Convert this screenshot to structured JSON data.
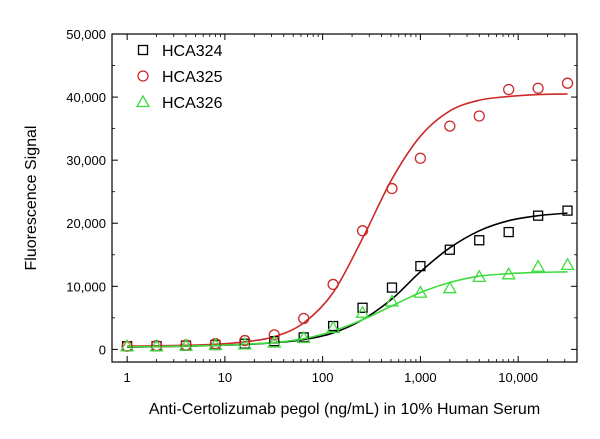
{
  "chart_data": {
    "type": "scatter",
    "xlabel": "Anti-Certolizumab pegol (ng/mL) in 10% Human Serum",
    "ylabel": "Fluorescence Signal",
    "x_scale": "log",
    "xlim": [
      0.7,
      40000
    ],
    "ylim": [
      -2000,
      50000
    ],
    "x_ticks": [
      {
        "value": 1,
        "label": "1"
      },
      {
        "value": 10,
        "label": "10"
      },
      {
        "value": 100,
        "label": "100"
      },
      {
        "value": 1000,
        "label": "1,000"
      },
      {
        "value": 10000,
        "label": "10,000"
      }
    ],
    "y_ticks": [
      {
        "value": 0,
        "label": "0"
      },
      {
        "value": 10000,
        "label": "10,000"
      },
      {
        "value": 20000,
        "label": "20,000"
      },
      {
        "value": 30000,
        "label": "30,000"
      },
      {
        "value": 40000,
        "label": "40,000"
      },
      {
        "value": 50000,
        "label": "50,000"
      }
    ],
    "legend_position": "top-left",
    "grid": false,
    "series": [
      {
        "name": "HCA324",
        "marker": "square",
        "color": "#000000",
        "x": [
          1,
          2,
          4,
          8,
          16,
          32,
          64,
          128,
          256,
          512,
          1000,
          2000,
          4000,
          8000,
          16000,
          32000
        ],
        "y": [
          500,
          500,
          600,
          700,
          900,
          1300,
          1900,
          3700,
          6600,
          9800,
          13200,
          15800,
          17300,
          18600,
          21200,
          22000
        ],
        "fit": [
          350,
          420,
          500,
          620,
          780,
          1050,
          1550,
          2600,
          4700,
          8000,
          12300,
          16100,
          18800,
          20400,
          21200,
          21600
        ]
      },
      {
        "name": "HCA325",
        "marker": "circle",
        "color": "#cc2a2a",
        "x": [
          1,
          2,
          4,
          8,
          16,
          32,
          64,
          128,
          256,
          512,
          1000,
          2000,
          4000,
          8000,
          16000,
          32000
        ],
        "y": [
          500,
          600,
          700,
          900,
          1400,
          2300,
          4900,
          10300,
          18800,
          25500,
          30300,
          35400,
          37000,
          41200,
          41400,
          42200
        ],
        "fit": [
          500,
          560,
          650,
          800,
          1200,
          2000,
          4200,
          9000,
          17600,
          27000,
          33800,
          37800,
          39500,
          40100,
          40400,
          40500
        ]
      },
      {
        "name": "HCA326",
        "marker": "triangle",
        "color": "#3fdb3f",
        "x": [
          1,
          2,
          4,
          8,
          16,
          32,
          64,
          128,
          256,
          512,
          1000,
          2000,
          4000,
          8000,
          16000,
          32000
        ],
        "y": [
          500,
          500,
          600,
          700,
          800,
          1100,
          1800,
          3400,
          5800,
          7600,
          9000,
          9700,
          11500,
          11900,
          13100,
          13400
        ],
        "fit": [
          400,
          450,
          520,
          620,
          800,
          1100,
          1700,
          2900,
          4700,
          6900,
          9000,
          10600,
          11600,
          12000,
          12200,
          12300
        ]
      }
    ]
  }
}
